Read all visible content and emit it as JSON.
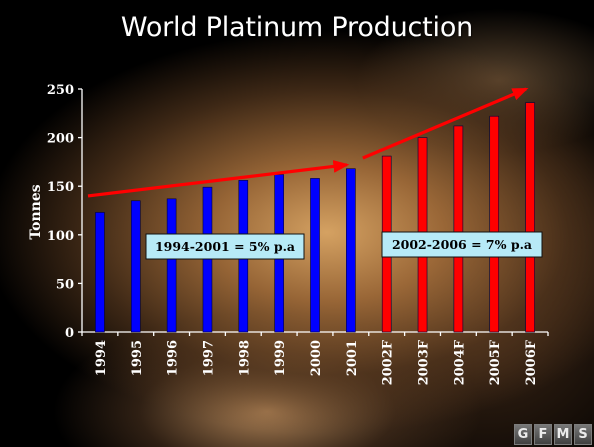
{
  "title": "World Platinum Production",
  "chart_data": {
    "type": "bar",
    "title": "World Platinum Production",
    "ylabel": "Tonnes",
    "xlabel": "",
    "ylim": [
      0,
      250
    ],
    "yticks": [
      0,
      50,
      100,
      150,
      200,
      250
    ],
    "categories": [
      "1994",
      "1995",
      "1996",
      "1997",
      "1998",
      "1999",
      "2000",
      "2001",
      "2002F",
      "2003F",
      "2004F",
      "2005F",
      "2006F"
    ],
    "values": [
      123,
      135,
      137,
      149,
      156,
      162,
      158,
      168,
      181,
      200,
      212,
      222,
      236
    ],
    "bar_colors": [
      "#0000ff",
      "#0000ff",
      "#0000ff",
      "#0000ff",
      "#0000ff",
      "#0000ff",
      "#0000ff",
      "#0000ff",
      "#ff0000",
      "#ff0000",
      "#ff0000",
      "#ff0000",
      "#ff0000"
    ],
    "grid": false,
    "legend": "none",
    "annotations": [
      {
        "text": "1994-2001 = 5% p.a"
      },
      {
        "text": "2002-2006 = 7% p.a"
      }
    ],
    "trend_arrows": [
      {
        "from": [
          "1994",
          140
        ],
        "to": [
          "2001",
          172
        ]
      },
      {
        "from": [
          "2001",
          179
        ],
        "to": [
          "2006F",
          250
        ]
      }
    ],
    "arrow_color": "#ff0000"
  },
  "logo": [
    "G",
    "F",
    "M",
    "S"
  ]
}
